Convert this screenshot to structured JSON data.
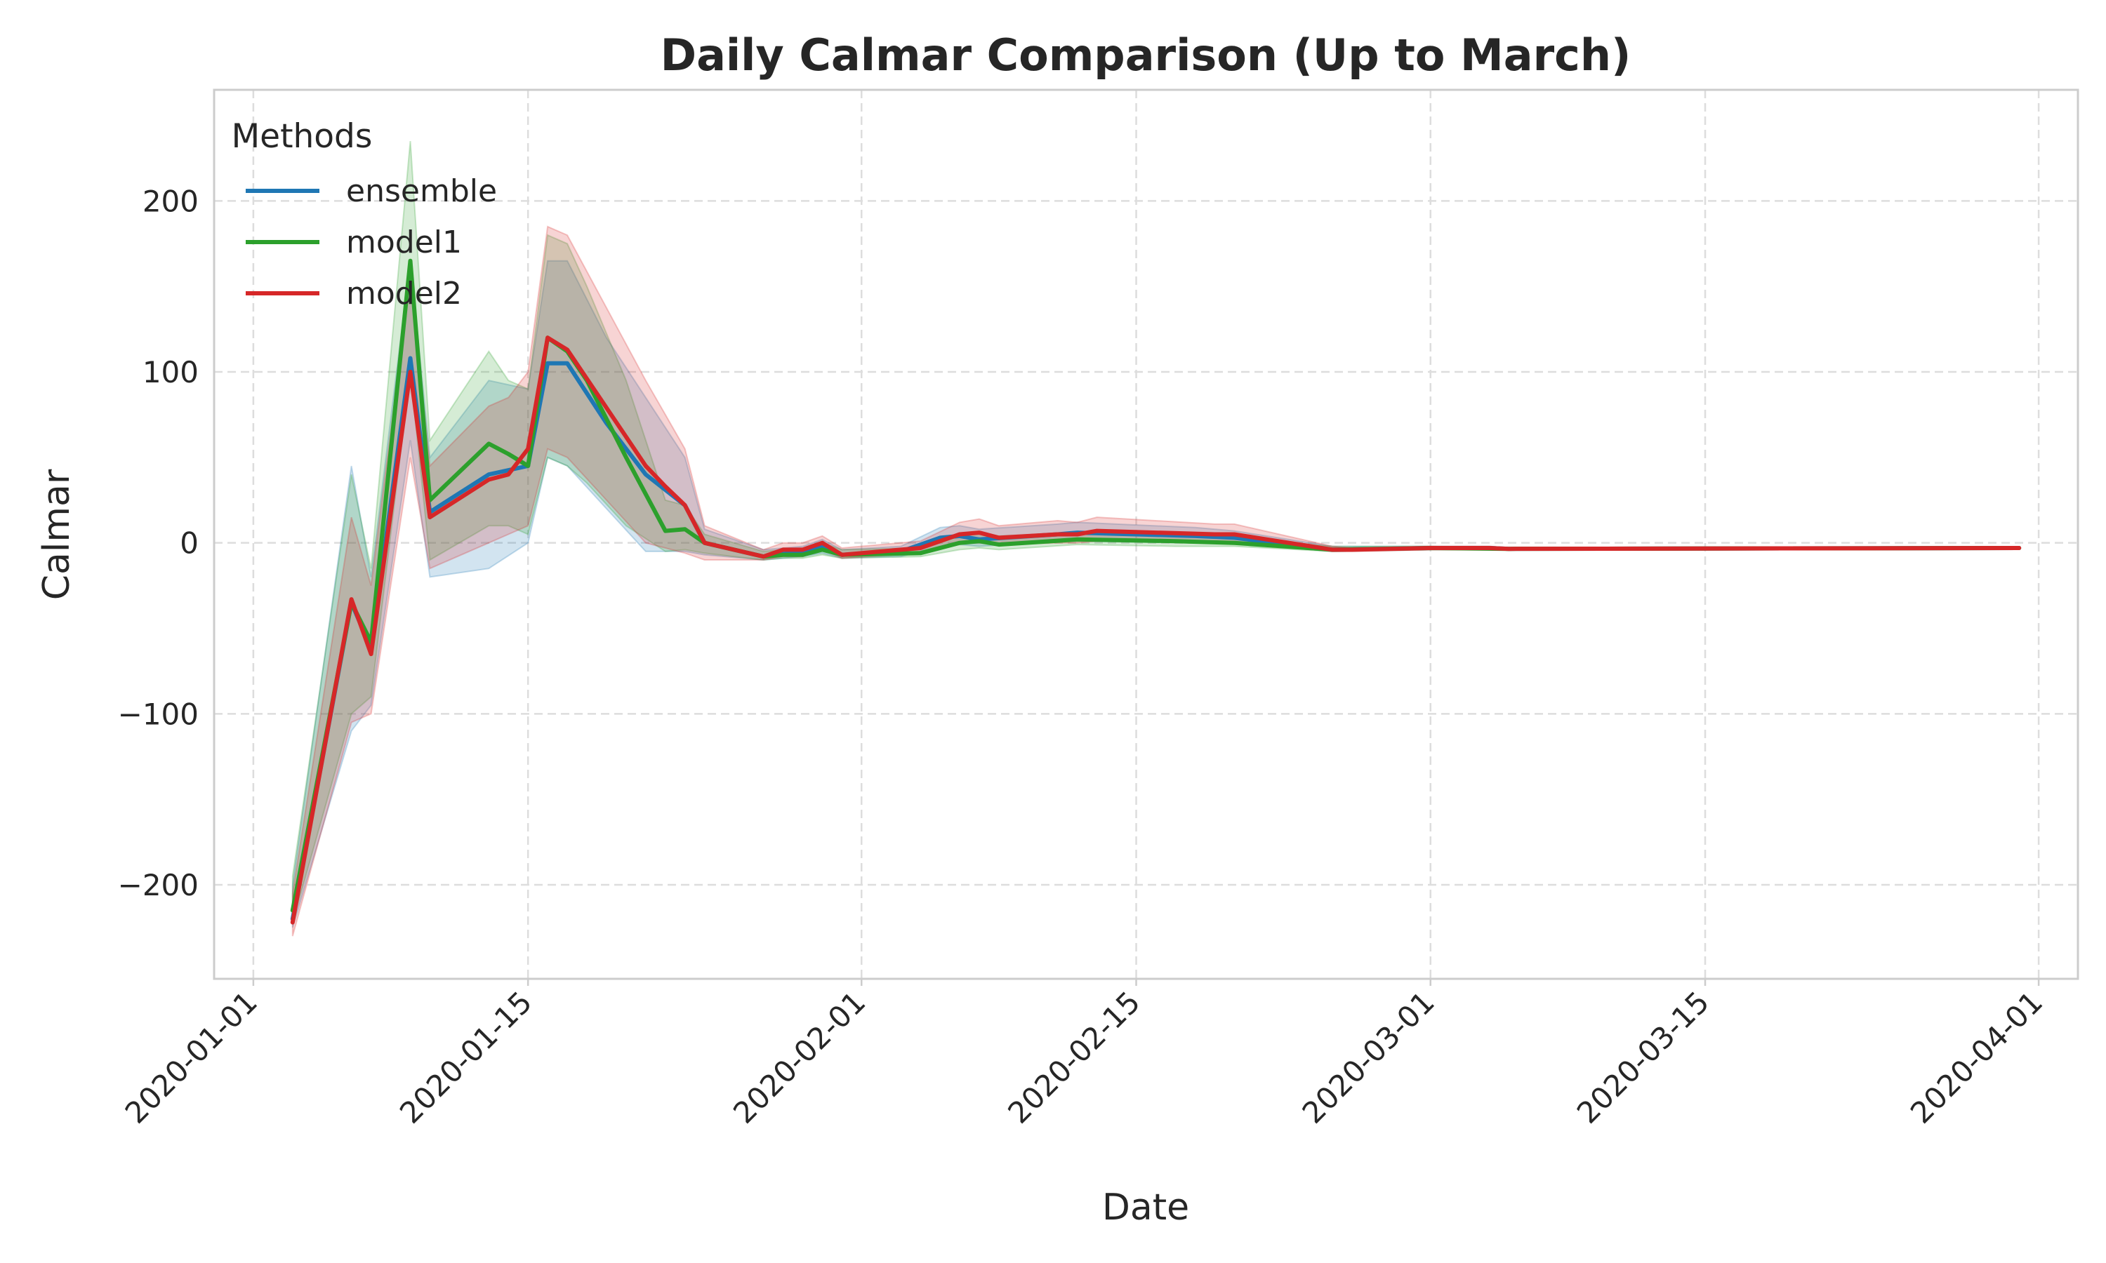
{
  "chart_data": {
    "type": "line",
    "title": "Daily Calmar Comparison (Up to March)",
    "xlabel": "Date",
    "ylabel": "Calmar",
    "x_range": [
      "2019-12-30",
      "2020-04-03"
    ],
    "ylim": [
      -255,
      265
    ],
    "x_ticks": [
      "2020-01-01",
      "2020-01-15",
      "2020-02-01",
      "2020-02-15",
      "2020-03-01",
      "2020-03-15",
      "2020-04-01"
    ],
    "y_ticks": [
      -200,
      -100,
      0,
      100,
      200
    ],
    "y_tick_labels": [
      "−200",
      "−100",
      "0",
      "100",
      "200"
    ],
    "grid": true,
    "legend": {
      "title": "Methods",
      "placement": "top-left"
    },
    "series": [
      {
        "name": "ensemble",
        "color": "#1f77b4",
        "band_opacity": 0.2,
        "points": [
          [
            "2020-01-03",
            -220,
            -225,
            -200
          ],
          [
            "2020-01-06",
            -35,
            -110,
            45
          ],
          [
            "2020-01-07",
            -62,
            -95,
            -20
          ],
          [
            "2020-01-09",
            108,
            60,
            165
          ],
          [
            "2020-01-10",
            18,
            -20,
            50
          ],
          [
            "2020-01-13",
            40,
            -15,
            95
          ],
          [
            "2020-01-15",
            45,
            0,
            90
          ],
          [
            "2020-01-16",
            105,
            50,
            165
          ],
          [
            "2020-01-17",
            105,
            45,
            165
          ],
          [
            "2020-01-19",
            70,
            20,
            120
          ],
          [
            "2020-01-21",
            40,
            -5,
            85
          ],
          [
            "2020-01-23",
            22,
            -5,
            50
          ],
          [
            "2020-01-24",
            0,
            -7,
            8
          ],
          [
            "2020-01-27",
            -8,
            -10,
            -4
          ],
          [
            "2020-01-29",
            -5,
            -8,
            -2
          ],
          [
            "2020-01-30",
            -2,
            -6,
            2
          ],
          [
            "2020-01-31",
            -7,
            -9,
            -4
          ],
          [
            "2020-02-03",
            -5,
            -8,
            -2
          ],
          [
            "2020-02-05",
            3,
            -2,
            9
          ],
          [
            "2020-02-06",
            4,
            -1,
            10
          ],
          [
            "2020-02-07",
            2,
            -2,
            8
          ],
          [
            "2020-02-11",
            5,
            1,
            11
          ],
          [
            "2020-02-12",
            6,
            1,
            12
          ],
          [
            "2020-02-18",
            4,
            0,
            9
          ],
          [
            "2020-02-20",
            3,
            0,
            7
          ],
          [
            "2020-02-25",
            -4,
            -5,
            -2
          ],
          [
            "2020-03-01",
            -3,
            -4,
            -2
          ],
          [
            "2020-03-04",
            -3,
            -4,
            -2
          ],
          [
            "2020-03-05",
            -3.5,
            -4,
            -3
          ],
          [
            "2020-03-31",
            -3,
            -3.5,
            -2.5
          ]
        ]
      },
      {
        "name": "model1",
        "color": "#2ca02c",
        "band_opacity": 0.2,
        "points": [
          [
            "2020-01-03",
            -215,
            -222,
            -195
          ],
          [
            "2020-01-06",
            -35,
            -100,
            40
          ],
          [
            "2020-01-07",
            -58,
            -90,
            -15
          ],
          [
            "2020-01-09",
            165,
            100,
            235
          ],
          [
            "2020-01-10",
            25,
            -10,
            60
          ],
          [
            "2020-01-13",
            58,
            10,
            112
          ],
          [
            "2020-01-14",
            52,
            10,
            95
          ],
          [
            "2020-01-15",
            45,
            5,
            90
          ],
          [
            "2020-01-16",
            120,
            50,
            180
          ],
          [
            "2020-01-17",
            112,
            45,
            175
          ],
          [
            "2020-01-18",
            95,
            35,
            150
          ],
          [
            "2020-01-20",
            50,
            10,
            95
          ],
          [
            "2020-01-22",
            7,
            -5,
            25
          ],
          [
            "2020-01-23",
            8,
            -4,
            22
          ],
          [
            "2020-01-24",
            0,
            -6,
            5
          ],
          [
            "2020-01-27",
            -8,
            -10,
            -5
          ],
          [
            "2020-01-28",
            -7,
            -9,
            -4
          ],
          [
            "2020-01-29",
            -7,
            -9,
            -4
          ],
          [
            "2020-01-30",
            -4,
            -7,
            0
          ],
          [
            "2020-01-31",
            -7,
            -9,
            -4
          ],
          [
            "2020-02-04",
            -6,
            -8,
            -3
          ],
          [
            "2020-02-06",
            0,
            -4,
            5
          ],
          [
            "2020-02-07",
            1,
            -3,
            6
          ],
          [
            "2020-02-08",
            -1,
            -4,
            4
          ],
          [
            "2020-02-12",
            2,
            -1,
            6
          ],
          [
            "2020-02-17",
            1,
            -2,
            5
          ],
          [
            "2020-02-20",
            0,
            -2,
            3
          ],
          [
            "2020-02-25",
            -4,
            -5,
            -2
          ],
          [
            "2020-03-01",
            -3,
            -4,
            -2
          ],
          [
            "2020-03-05",
            -3.5,
            -4,
            -3
          ],
          [
            "2020-03-31",
            -3,
            -3.5,
            -2.5
          ]
        ]
      },
      {
        "name": "model2",
        "color": "#d62728",
        "band_opacity": 0.2,
        "points": [
          [
            "2020-01-03",
            -222,
            -230,
            -205
          ],
          [
            "2020-01-06",
            -33,
            -105,
            15
          ],
          [
            "2020-01-07",
            -65,
            -100,
            -25
          ],
          [
            "2020-01-09",
            100,
            50,
            155
          ],
          [
            "2020-01-10",
            15,
            -15,
            45
          ],
          [
            "2020-01-13",
            37,
            0,
            80
          ],
          [
            "2020-01-14",
            40,
            5,
            85
          ],
          [
            "2020-01-15",
            55,
            10,
            100
          ],
          [
            "2020-01-16",
            120,
            55,
            185
          ],
          [
            "2020-01-17",
            113,
            50,
            180
          ],
          [
            "2020-01-21",
            45,
            0,
            95
          ],
          [
            "2020-01-22",
            33,
            -3,
            75
          ],
          [
            "2020-01-23",
            22,
            -6,
            55
          ],
          [
            "2020-01-24",
            0,
            -10,
            10
          ],
          [
            "2020-01-27",
            -8,
            -10,
            -4
          ],
          [
            "2020-01-28",
            -4,
            -8,
            0
          ],
          [
            "2020-01-29",
            -4,
            -8,
            0
          ],
          [
            "2020-01-30",
            0,
            -4,
            4
          ],
          [
            "2020-01-31",
            -7,
            -9,
            -3
          ],
          [
            "2020-02-04",
            -3,
            -6,
            1
          ],
          [
            "2020-02-06",
            5,
            0,
            12
          ],
          [
            "2020-02-07",
            6,
            0,
            14
          ],
          [
            "2020-02-08",
            3,
            -1,
            10
          ],
          [
            "2020-02-11",
            5,
            0,
            13
          ],
          [
            "2020-02-12",
            5,
            0,
            12
          ],
          [
            "2020-02-13",
            7,
            1,
            15
          ],
          [
            "2020-02-19",
            5,
            0,
            11
          ],
          [
            "2020-02-20",
            5,
            0,
            11
          ],
          [
            "2020-02-25",
            -4,
            -5,
            -2
          ],
          [
            "2020-02-26",
            -4,
            -5,
            -3
          ],
          [
            "2020-03-01",
            -3,
            -4,
            -2
          ],
          [
            "2020-03-04",
            -3,
            -4,
            -2
          ],
          [
            "2020-03-05",
            -3.5,
            -4,
            -3
          ],
          [
            "2020-03-31",
            -3,
            -3.5,
            -2.5
          ]
        ]
      }
    ]
  }
}
